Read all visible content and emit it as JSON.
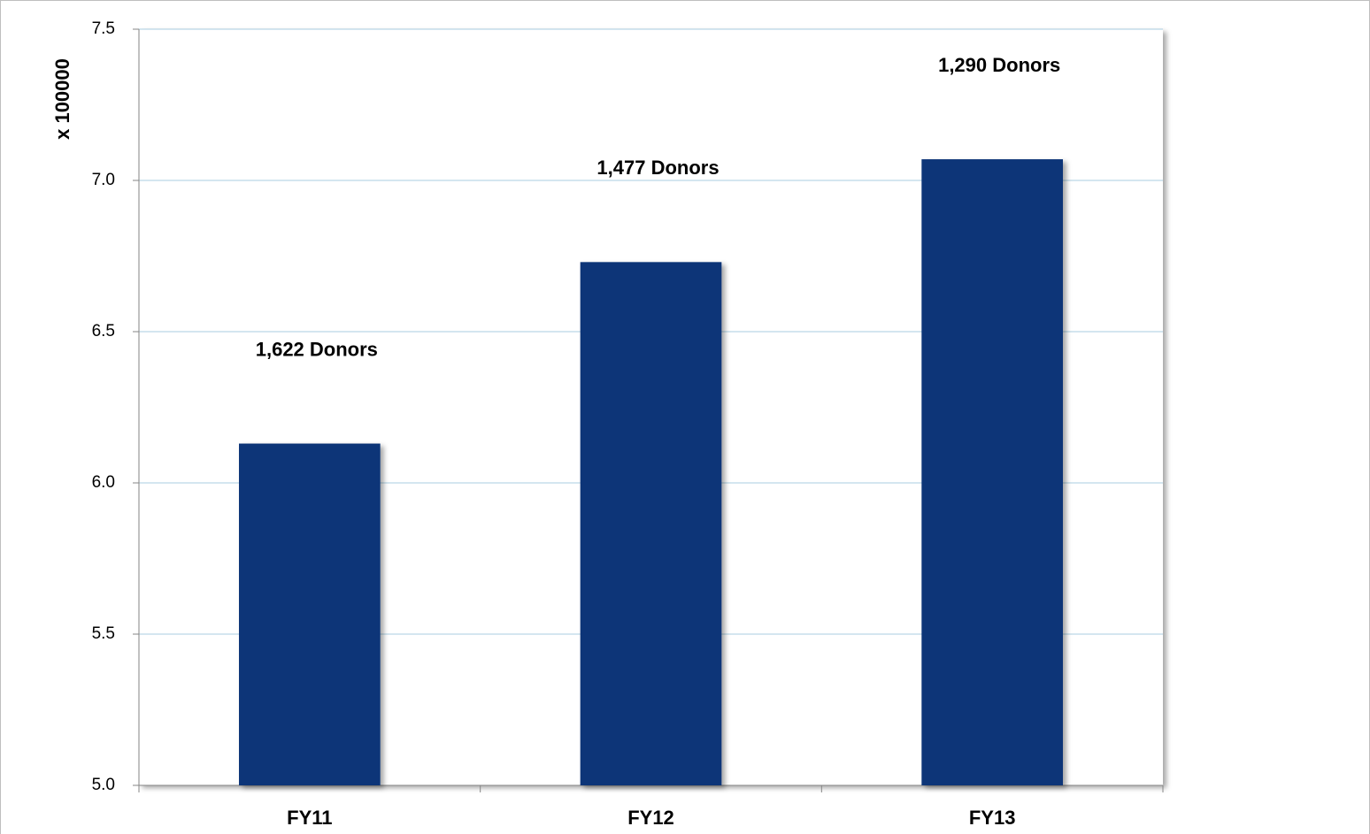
{
  "chart_data": {
    "type": "bar",
    "y_axis_label": "x 100000",
    "categories": [
      "FY11",
      "FY12",
      "FY13"
    ],
    "values": [
      6.13,
      6.73,
      7.07
    ],
    "annotations": [
      "1,622 Donors",
      "1,477 Donors",
      "1,290 Donors"
    ],
    "color": "#0b3578",
    "ylim": [
      5.0,
      7.5
    ],
    "yticks": [
      {
        "value": 5,
        "label": "5.0"
      },
      5.5,
      {
        "value": 6,
        "label": "6.0"
      },
      6.5,
      {
        "value": 7,
        "label": "7.0"
      },
      7.5
    ],
    "grid": true
  }
}
